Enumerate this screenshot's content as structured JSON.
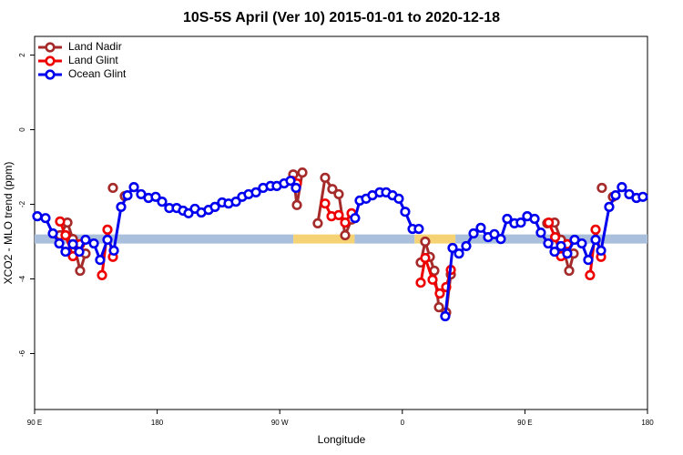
{
  "chart_data": {
    "type": "line",
    "title": "10S-5S April (Ver 10)   2015-01-01 to 2020-12-18",
    "x_label": "Longitude",
    "y_label": "XCO2 - MLO trend (ppm)",
    "xlim": [
      90,
      540
    ],
    "ylim": [
      -7.5,
      2.5
    ],
    "xticks": [
      {
        "value": 90,
        "label": "90 E"
      },
      180,
      {
        "value": 270,
        "label": "90 W"
      },
      {
        "value": 360,
        "label": "0"
      },
      {
        "value": 450,
        "label": "90 E"
      },
      {
        "value": 540,
        "label": "180"
      }
    ],
    "yticks": [
      2,
      0,
      -2,
      -4,
      -6
    ],
    "legend": "top-left",
    "band": {
      "y": -2.93,
      "segments": [
        {
          "from": 90,
          "to": 280,
          "color": "#a9bfdc"
        },
        {
          "from": 280,
          "to": 325,
          "color": "#f5d374"
        },
        {
          "from": 325,
          "to": 369,
          "color": "#a9bfdc"
        },
        {
          "from": 369,
          "to": 399,
          "color": "#f5d374"
        },
        {
          "from": 399,
          "to": 540,
          "color": "#a9bfdc"
        }
      ]
    },
    "series": [
      {
        "name": "Land Nadir",
        "color": "#a52a2a",
        "x": [
          108.7,
          114.1,
          118.1,
          123.4,
          127.4,
          null,
          147.5,
          null,
          156.2,
          null,
          279.9,
          282.6,
          286.6,
          null,
          297.9,
          303.3,
          308.6,
          313.3,
          318.0,
          322.7,
          null,
          373.5,
          376.8,
          380.2,
          383.5,
          386.9,
          392.2,
          395.6,
          null,
          466.4,
          471.8,
          476.5,
          482.5,
          485.8,
          null,
          506.5,
          null,
          514.6
        ],
        "values": [
          -2.83,
          -2.49,
          -2.93,
          -3.78,
          -3.32,
          null,
          -1.56,
          null,
          -1.78,
          null,
          -1.2,
          -2.02,
          -1.15,
          null,
          -2.51,
          -1.29,
          -1.59,
          -1.73,
          -2.83,
          -2.41,
          null,
          -3.56,
          -3.0,
          -3.41,
          -3.78,
          -4.76,
          -4.9,
          -3.88,
          null,
          -2.51,
          -2.49,
          -2.95,
          -3.78,
          -3.32,
          null,
          -1.56,
          null,
          -1.8
        ]
      },
      {
        "name": "Land Glint",
        "color": "#ee0000",
        "x": [
          108.7,
          112.7,
          118.1,
          123.4,
          null,
          139.5,
          143.5,
          147.5,
          null,
          279.2,
          282.6,
          null,
          303.3,
          308.0,
          313.3,
          318.0,
          322.7,
          null,
          373.5,
          376.8,
          382.2,
          387.5,
          392.2,
          395.6,
          null,
          467.5,
          472.2,
          476.5,
          481.1,
          null,
          497.8,
          501.9,
          505.9
        ],
        "values": [
          -2.46,
          -2.83,
          -3.39,
          -3.07,
          null,
          -3.9,
          -2.68,
          -3.41,
          null,
          -1.37,
          -1.44,
          null,
          -1.98,
          -2.32,
          -2.29,
          -2.49,
          -2.24,
          null,
          -4.1,
          -3.44,
          -4.02,
          -4.39,
          -4.22,
          -3.76,
          null,
          -2.49,
          -2.88,
          -3.39,
          -3.07,
          null,
          -3.9,
          -2.68,
          -3.41
        ]
      },
      {
        "name": "Ocean Glint",
        "color": "#0000ee",
        "x": [
          92.0,
          98.0,
          103.4,
          108.1,
          112.7,
          118.1,
          122.8,
          127.4,
          133.5,
          138.1,
          143.5,
          148.2,
          153.5,
          158.2,
          162.9,
          168.2,
          173.6,
          178.9,
          183.6,
          188.9,
          194.3,
          199.0,
          203.0,
          207.7,
          212.4,
          217.7,
          222.4,
          227.7,
          232.4,
          237.8,
          242.4,
          247.1,
          252.5,
          257.8,
          263.2,
          267.8,
          273.2,
          277.9,
          281.9,
          null,
          325.3,
          328.7,
          333.4,
          338.0,
          343.4,
          348.1,
          352.8,
          357.4,
          362.1,
          367.5,
          372.1,
          null,
          391.5,
          396.9,
          401.6,
          406.9,
          412.3,
          417.6,
          423.0,
          427.6,
          432.3,
          437.0,
          442.3,
          447.0,
          451.7,
          457.1,
          461.7,
          467.1,
          471.8,
          476.5,
          481.1,
          486.5,
          491.8,
          496.5,
          501.9,
          505.9,
          511.9,
          516.6,
          521.2,
          526.6,
          531.9,
          536.6
        ],
        "values": [
          -2.32,
          -2.37,
          -2.78,
          -3.05,
          -3.27,
          -3.07,
          -3.27,
          -2.95,
          -3.05,
          -3.49,
          -2.95,
          -3.24,
          -2.07,
          -1.76,
          -1.54,
          -1.73,
          -1.83,
          -1.8,
          -1.93,
          -2.1,
          -2.1,
          -2.17,
          -2.24,
          -2.12,
          -2.22,
          -2.15,
          -2.07,
          -1.95,
          -1.98,
          -1.93,
          -1.8,
          -1.73,
          -1.68,
          -1.56,
          -1.51,
          -1.51,
          -1.44,
          -1.37,
          -1.56,
          null,
          -2.37,
          -1.9,
          -1.85,
          -1.76,
          -1.68,
          -1.68,
          -1.76,
          -1.85,
          -2.2,
          -2.66,
          -2.66,
          null,
          -5.0,
          -3.17,
          -3.32,
          -3.12,
          -2.78,
          -2.63,
          -2.88,
          -2.8,
          -2.93,
          -2.39,
          -2.51,
          -2.49,
          -2.32,
          -2.39,
          -2.76,
          -3.05,
          -3.27,
          -3.12,
          -3.32,
          -2.95,
          -3.05,
          -3.49,
          -2.95,
          -3.24,
          -2.07,
          -1.76,
          -1.54,
          -1.73,
          -1.83,
          -1.8
        ]
      }
    ]
  }
}
